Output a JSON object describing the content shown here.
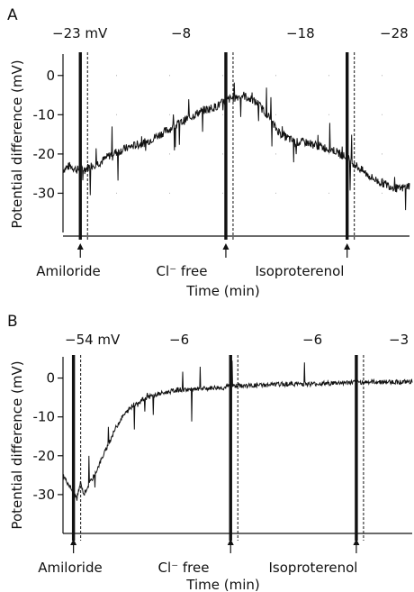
{
  "figure": {
    "panels": [
      {
        "label": "A",
        "ylabel": "Potential difference (mV)",
        "xlabel": "Time (min)",
        "top_values": [
          "−23 mV",
          "−8",
          "−18",
          "−28"
        ],
        "treatments": [
          "Amiloride",
          "Cl⁻ free",
          "Isoproterenol"
        ]
      },
      {
        "label": "B",
        "ylabel": "Potential difference (mV)",
        "xlabel": "Time (min)",
        "top_values": [
          "−54 mV",
          "−6",
          "−6",
          "−3"
        ],
        "treatments": [
          "Amiloride",
          "Cl⁻ free",
          "Isoproterenol"
        ]
      }
    ]
  },
  "chart_data": [
    {
      "type": "line",
      "panel": "A",
      "xlabel": "Time (min)",
      "ylabel": "Potential difference (mV)",
      "ylim": [
        -40,
        5
      ],
      "xlim": [
        0,
        100
      ],
      "yticks": [
        0,
        -10,
        -20,
        -30
      ],
      "grid": "dotted",
      "series": [
        {
          "x": [
            0,
            2,
            4,
            6,
            8,
            11,
            14,
            17,
            20,
            24,
            28,
            32,
            36,
            40,
            44,
            48,
            52,
            56,
            59,
            61,
            63,
            65,
            67,
            70,
            74,
            78,
            82,
            86,
            89,
            91,
            94,
            97,
            100
          ],
          "y": [
            -24,
            -23,
            -24,
            -24,
            -23,
            -22,
            -20,
            -19,
            -18,
            -17,
            -15,
            -13,
            -11,
            -9,
            -8,
            -6,
            -5,
            -7,
            -10,
            -13,
            -15,
            -16,
            -17,
            -17,
            -18,
            -19,
            -21,
            -24,
            -26,
            -27,
            -28,
            -29,
            -28
          ]
        }
      ],
      "markers": [
        {
          "label": "Amiloride",
          "x": 5
        },
        {
          "label": "Cl⁻ free",
          "x": 47
        },
        {
          "label": "Isoproterenol",
          "x": 82
        }
      ],
      "top_values": [
        "−23 mV",
        "−8",
        "−18",
        "−28"
      ]
    },
    {
      "type": "line",
      "panel": "B",
      "xlabel": "Time (min)",
      "ylabel": "Potential difference (mV)",
      "ylim": [
        -40,
        5
      ],
      "xlim": [
        0,
        100
      ],
      "yticks": [
        0,
        -10,
        -20,
        -30
      ],
      "series": [
        {
          "x": [
            0,
            2,
            4,
            5,
            6,
            7,
            9,
            11,
            13,
            15,
            17,
            20,
            24,
            28,
            33,
            38,
            43,
            46,
            48,
            52,
            58,
            65,
            72,
            80,
            88,
            95,
            100
          ],
          "y": [
            -25,
            -28,
            -31,
            -27,
            -30,
            -28,
            -25,
            -21,
            -17,
            -13,
            -10,
            -7,
            -5,
            -4,
            -3,
            -3,
            -2.5,
            -2.5,
            -2,
            -2,
            -1.8,
            -1.5,
            -1.5,
            -1.2,
            -1,
            -1,
            -1
          ]
        }
      ],
      "markers": [
        {
          "label": "Amiloride",
          "x": 3
        },
        {
          "label": "Cl⁻ free",
          "x": 48
        },
        {
          "label": "Isoproterenol",
          "x": 84
        }
      ],
      "top_values": [
        "−54 mV",
        "−6",
        "−6",
        "−3"
      ]
    }
  ]
}
